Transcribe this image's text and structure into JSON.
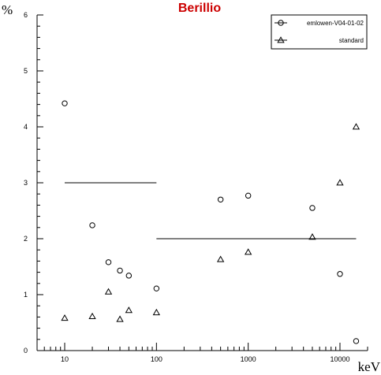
{
  "chart_data": {
    "type": "scatter",
    "title": "Berillio",
    "xlabel": "keV",
    "ylabel": "%",
    "xscale": "log",
    "xlim": [
      5,
      20000
    ],
    "ylim": [
      0,
      6
    ],
    "xticks": [
      "10",
      "100",
      "1000",
      "10000"
    ],
    "yticks": [
      "0",
      "1",
      "2",
      "3",
      "4",
      "5",
      "6"
    ],
    "legend_position": "top-right",
    "series": [
      {
        "name": "emlowen-V04-01-02",
        "marker": "circle",
        "points": [
          [
            10,
            4.42
          ],
          [
            20,
            2.24
          ],
          [
            30,
            1.58
          ],
          [
            40,
            1.43
          ],
          [
            50,
            1.34
          ],
          [
            100,
            1.11
          ],
          [
            500,
            2.7
          ],
          [
            1000,
            2.77
          ],
          [
            5000,
            2.55
          ],
          [
            10000,
            1.37
          ],
          [
            15000,
            0.17
          ]
        ]
      },
      {
        "name": "standard",
        "marker": "triangle",
        "points": [
          [
            10,
            0.58
          ],
          [
            20,
            0.61
          ],
          [
            30,
            1.05
          ],
          [
            40,
            0.56
          ],
          [
            50,
            0.72
          ],
          [
            100,
            0.68
          ],
          [
            500,
            1.63
          ],
          [
            1000,
            1.76
          ],
          [
            5000,
            2.03
          ],
          [
            10000,
            3.0
          ],
          [
            15000,
            4.0
          ]
        ]
      }
    ],
    "reference_lines": [
      {
        "x": [
          10,
          100
        ],
        "y": 3
      },
      {
        "x": [
          100,
          15000
        ],
        "y": 2
      }
    ]
  }
}
